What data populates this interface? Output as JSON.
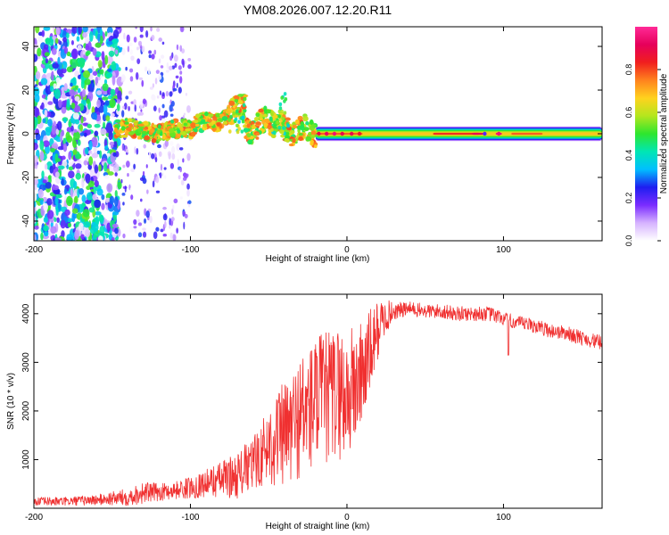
{
  "figure_title": "YM08.2026.007.12.20.R11",
  "chart_data": [
    {
      "type": "heatmap",
      "title": "YM08.2026.007.12.20.R11",
      "xlabel": "Height of straight line (km)",
      "ylabel": "Frequency (Hz)",
      "xlim": [
        -200,
        163
      ],
      "ylim": [
        -49,
        49
      ],
      "xticks": [
        -200,
        -100,
        0,
        100
      ],
      "yticks": [
        -40,
        -20,
        0,
        20,
        40
      ],
      "colorbar": {
        "label": "Normalized spectral amplitude",
        "range": [
          0,
          1
        ],
        "ticks": [
          "0.0",
          "0.2",
          "0.4",
          "0.6",
          "0.8"
        ],
        "colormap": [
          "#ffffff",
          "#d6b3ff",
          "#7a2cff",
          "#1e1ef0",
          "#00bfff",
          "#00e6b4",
          "#2ee62e",
          "#b4e61e",
          "#ffd21e",
          "#ff821e",
          "#f01e1e",
          "#e6005a",
          "#ff2a96"
        ]
      },
      "features": [
        {
          "name": "broadband noise",
          "x_range": [
            -200,
            -145
          ],
          "y_range": [
            -49,
            49
          ],
          "amplitude": 0.3
        },
        {
          "name": "sparse noise",
          "x_range": [
            -145,
            -100
          ],
          "y_range": [
            -49,
            49
          ],
          "amplitude": 0.1
        },
        {
          "name": "signal band",
          "x_range": [
            -148,
            163
          ],
          "center_hz": 0,
          "half_width_hz": 3,
          "amplitude_peak": 0.95
        }
      ]
    },
    {
      "type": "line",
      "title": "",
      "xlabel": "Height of straight line (km)",
      "ylabel": "SNR (10 * v/v)",
      "xlim": [
        -200,
        163
      ],
      "ylim": [
        0,
        4400
      ],
      "xticks": [
        -200,
        -100,
        0,
        100
      ],
      "yticks": [
        1000,
        2000,
        3000,
        4000
      ],
      "series": [
        {
          "name": "SNR",
          "color": "#f03030",
          "x": [
            -200,
            -180,
            -160,
            -140,
            -130,
            -120,
            -110,
            -100,
            -90,
            -80,
            -70,
            -60,
            -55,
            -50,
            -45,
            -40,
            -35,
            -30,
            -25,
            -20,
            -15,
            -10,
            -5,
            0,
            5,
            10,
            15,
            20,
            25,
            30,
            40,
            50,
            60,
            70,
            80,
            90,
            100,
            110,
            120,
            130,
            140,
            150,
            163
          ],
          "values": [
            140,
            140,
            170,
            230,
            320,
            330,
            370,
            420,
            520,
            600,
            680,
            900,
            1100,
            1300,
            1450,
            1500,
            1650,
            1900,
            2000,
            2200,
            2250,
            2300,
            2400,
            2300,
            2500,
            2800,
            3200,
            3700,
            3950,
            4050,
            4100,
            4050,
            4050,
            4000,
            4000,
            4000,
            3900,
            3800,
            3750,
            3650,
            3600,
            3500,
            3400
          ],
          "noise_amplitude": [
            90,
            90,
            110,
            180,
            230,
            180,
            180,
            230,
            280,
            380,
            480,
            580,
            650,
            850,
            1000,
            1100,
            1200,
            1300,
            1350,
            1400,
            1400,
            1400,
            1400,
            1400,
            1300,
            1100,
            900,
            600,
            350,
            180,
            150,
            150,
            150,
            150,
            150,
            150,
            150,
            150,
            150,
            150,
            150,
            150,
            150
          ]
        }
      ]
    }
  ]
}
